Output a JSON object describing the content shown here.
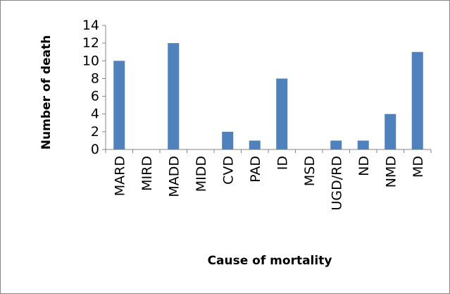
{
  "chart_data": {
    "type": "bar",
    "title": "",
    "xlabel": "Cause of mortality",
    "ylabel": "Number of death",
    "categories": [
      "MARD",
      "MIRD",
      "MADD",
      "MIDD",
      "CVD",
      "PAD",
      "ID",
      "MSD",
      "UGD/RD",
      "ND",
      "NMD",
      "MD"
    ],
    "values": [
      10,
      0,
      12,
      0,
      2,
      1,
      8,
      0,
      1,
      1,
      4,
      11
    ],
    "ylim": [
      0,
      14
    ],
    "yticks": [
      0,
      2,
      4,
      6,
      8,
      10,
      12,
      14
    ],
    "grid": false,
    "legend": "none",
    "bar_color": "#4f81bd"
  }
}
